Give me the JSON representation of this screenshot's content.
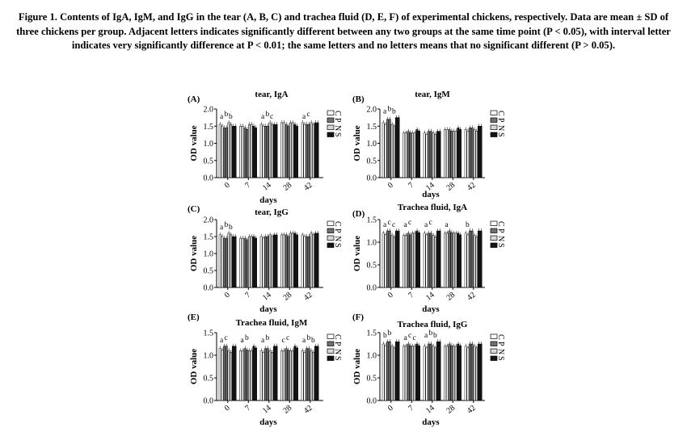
{
  "caption": {
    "label": "Figure 1.",
    "text": "Contents of IgA, IgM, and IgG in the tear (A, B, C) and trachea fluid (D, E, F) of experimental chickens, respectively. Data are mean ± SD of three chickens per group. Adjacent letters indicates significantly different between any two groups at the same time point (P < 0.05), with interval letter indicates very significantly difference at P < 0.01; the same letters and no letters means that no significant different (P > 0.05)."
  },
  "legend_items": [
    "C",
    "P",
    "N",
    "S"
  ],
  "colors": {
    "C": "#ffffff",
    "P": "#707070",
    "N": "#d8d8d8",
    "S": "#141414"
  },
  "chart_data": [
    {
      "panel": "(A)",
      "title": "tear, IgA",
      "type": "bar",
      "categories": [
        "0",
        "7",
        "14",
        "28",
        "42"
      ],
      "xlabel": "days",
      "ylabel": "OD value",
      "yticks": [
        "0.0",
        "0.5",
        "1.0",
        "1.5",
        "2.0"
      ],
      "ylim": [
        0,
        2.0
      ],
      "series": [
        {
          "name": "C",
          "values": [
            1.55,
            1.5,
            1.55,
            1.6,
            1.6
          ]
        },
        {
          "name": "P",
          "values": [
            1.45,
            1.45,
            1.5,
            1.55,
            1.55
          ]
        },
        {
          "name": "N",
          "values": [
            1.6,
            1.55,
            1.6,
            1.6,
            1.6
          ]
        },
        {
          "name": "S",
          "values": [
            1.5,
            1.5,
            1.55,
            1.55,
            1.6
          ]
        }
      ],
      "letters": [
        {
          "text": "a",
          "x": "0"
        },
        {
          "text": "b",
          "x": "0"
        },
        {
          "text": "b",
          "x": "0"
        },
        {
          "text": "a",
          "x": "14"
        },
        {
          "text": "b",
          "x": "14"
        },
        {
          "text": "c",
          "x": "14"
        },
        {
          "text": "a",
          "x": "42"
        },
        {
          "text": "c",
          "x": "42"
        }
      ]
    },
    {
      "panel": "(B)",
      "title": "tear, IgM",
      "type": "bar",
      "categories": [
        "0",
        "7",
        "14",
        "28",
        "42"
      ],
      "xlabel": "days",
      "ylabel": "OD value",
      "yticks": [
        "0.0",
        "0.5",
        "1.0",
        "1.5",
        "2.0"
      ],
      "ylim": [
        0,
        2.0
      ],
      "series": [
        {
          "name": "C",
          "values": [
            1.6,
            1.3,
            1.3,
            1.4,
            1.4
          ]
        },
        {
          "name": "P",
          "values": [
            1.7,
            1.35,
            1.35,
            1.4,
            1.45
          ]
        },
        {
          "name": "N",
          "values": [
            1.55,
            1.3,
            1.3,
            1.35,
            1.4
          ]
        },
        {
          "name": "S",
          "values": [
            1.75,
            1.4,
            1.35,
            1.45,
            1.5
          ]
        }
      ],
      "letters": [
        {
          "text": "a",
          "x": "0"
        },
        {
          "text": "b",
          "x": "0"
        },
        {
          "text": "b",
          "x": "0"
        }
      ]
    },
    {
      "panel": "(C)",
      "title": "tear, IgG",
      "type": "bar",
      "categories": [
        "0",
        "7",
        "14",
        "28",
        "42"
      ],
      "xlabel": "days",
      "ylabel": "OD value",
      "yticks": [
        "0.0",
        "0.5",
        "1.0",
        "1.5",
        "2.0"
      ],
      "ylim": [
        0,
        2.0
      ],
      "series": [
        {
          "name": "C",
          "values": [
            1.55,
            1.45,
            1.5,
            1.55,
            1.55
          ]
        },
        {
          "name": "P",
          "values": [
            1.45,
            1.45,
            1.5,
            1.55,
            1.5
          ]
        },
        {
          "name": "N",
          "values": [
            1.6,
            1.5,
            1.55,
            1.6,
            1.6
          ]
        },
        {
          "name": "S",
          "values": [
            1.5,
            1.5,
            1.55,
            1.6,
            1.6
          ]
        }
      ],
      "letters": [
        {
          "text": "a",
          "x": "0"
        },
        {
          "text": "b",
          "x": "0"
        },
        {
          "text": "b",
          "x": "0"
        }
      ]
    },
    {
      "panel": "(D)",
      "title": "Trachea fluid, IgA",
      "type": "bar",
      "categories": [
        "0",
        "7",
        "14",
        "28",
        "42"
      ],
      "xlabel": "days",
      "ylabel": "OD value",
      "yticks": [
        "0.0",
        "0.5",
        "1.0",
        "1.5"
      ],
      "ylim": [
        0,
        1.5
      ],
      "series": [
        {
          "name": "C",
          "values": [
            1.2,
            1.15,
            1.2,
            1.2,
            1.2
          ]
        },
        {
          "name": "P",
          "values": [
            1.25,
            1.2,
            1.2,
            1.25,
            1.25
          ]
        },
        {
          "name": "N",
          "values": [
            1.15,
            1.2,
            1.15,
            1.2,
            1.15
          ]
        },
        {
          "name": "S",
          "values": [
            1.25,
            1.25,
            1.25,
            1.2,
            1.25
          ]
        }
      ],
      "letters": [
        {
          "text": "a",
          "x": "0"
        },
        {
          "text": "c",
          "x": "0"
        },
        {
          "text": "c",
          "x": "0"
        },
        {
          "text": "a",
          "x": "7"
        },
        {
          "text": "c",
          "x": "7"
        },
        {
          "text": "a",
          "x": "14"
        },
        {
          "text": "c",
          "x": "14"
        },
        {
          "text": "a",
          "x": "28"
        },
        {
          "text": "b",
          "x": "42"
        }
      ]
    },
    {
      "panel": "(E)",
      "title": "Trachea fluid, IgM",
      "type": "bar",
      "categories": [
        "0",
        "7",
        "14",
        "28",
        "42"
      ],
      "xlabel": "days",
      "ylabel": "OD value",
      "yticks": [
        "0.0",
        "0.5",
        "1.0",
        "1.5"
      ],
      "ylim": [
        0,
        1.5
      ],
      "series": [
        {
          "name": "C",
          "values": [
            1.15,
            1.1,
            1.1,
            1.1,
            1.1
          ]
        },
        {
          "name": "P",
          "values": [
            1.2,
            1.15,
            1.15,
            1.15,
            1.15
          ]
        },
        {
          "name": "N",
          "values": [
            1.1,
            1.1,
            1.1,
            1.1,
            1.1
          ]
        },
        {
          "name": "S",
          "values": [
            1.2,
            1.2,
            1.2,
            1.2,
            1.2
          ]
        }
      ],
      "letters": [
        {
          "text": "a",
          "x": "0"
        },
        {
          "text": "c",
          "x": "0"
        },
        {
          "text": "a",
          "x": "7"
        },
        {
          "text": "b",
          "x": "7"
        },
        {
          "text": "a",
          "x": "14"
        },
        {
          "text": "b",
          "x": "14"
        },
        {
          "text": "c",
          "x": "28"
        },
        {
          "text": "c",
          "x": "28"
        },
        {
          "text": "a",
          "x": "42"
        },
        {
          "text": "b",
          "x": "42"
        },
        {
          "text": "b",
          "x": "42"
        }
      ]
    },
    {
      "panel": "(F)",
      "title": "Trachea fluid, IgG",
      "type": "bar",
      "categories": [
        "0",
        "7",
        "14",
        "28",
        "42"
      ],
      "xlabel": "days",
      "ylabel": "OD value",
      "yticks": [
        "0.0",
        "0.5",
        "1.0",
        "1.5"
      ],
      "ylim": [
        0,
        1.5
      ],
      "series": [
        {
          "name": "C",
          "values": [
            1.25,
            1.2,
            1.2,
            1.2,
            1.2
          ]
        },
        {
          "name": "P",
          "values": [
            1.3,
            1.25,
            1.25,
            1.25,
            1.25
          ]
        },
        {
          "name": "N",
          "values": [
            1.2,
            1.2,
            1.2,
            1.2,
            1.2
          ]
        },
        {
          "name": "S",
          "values": [
            1.3,
            1.25,
            1.3,
            1.25,
            1.25
          ]
        }
      ],
      "letters": [
        {
          "text": "b",
          "x": "0"
        },
        {
          "text": "b",
          "x": "0"
        },
        {
          "text": "a",
          "x": "7"
        },
        {
          "text": "c",
          "x": "7"
        },
        {
          "text": "c",
          "x": "7"
        },
        {
          "text": "a",
          "x": "14"
        },
        {
          "text": "b",
          "x": "14"
        },
        {
          "text": "b",
          "x": "14"
        }
      ]
    }
  ]
}
